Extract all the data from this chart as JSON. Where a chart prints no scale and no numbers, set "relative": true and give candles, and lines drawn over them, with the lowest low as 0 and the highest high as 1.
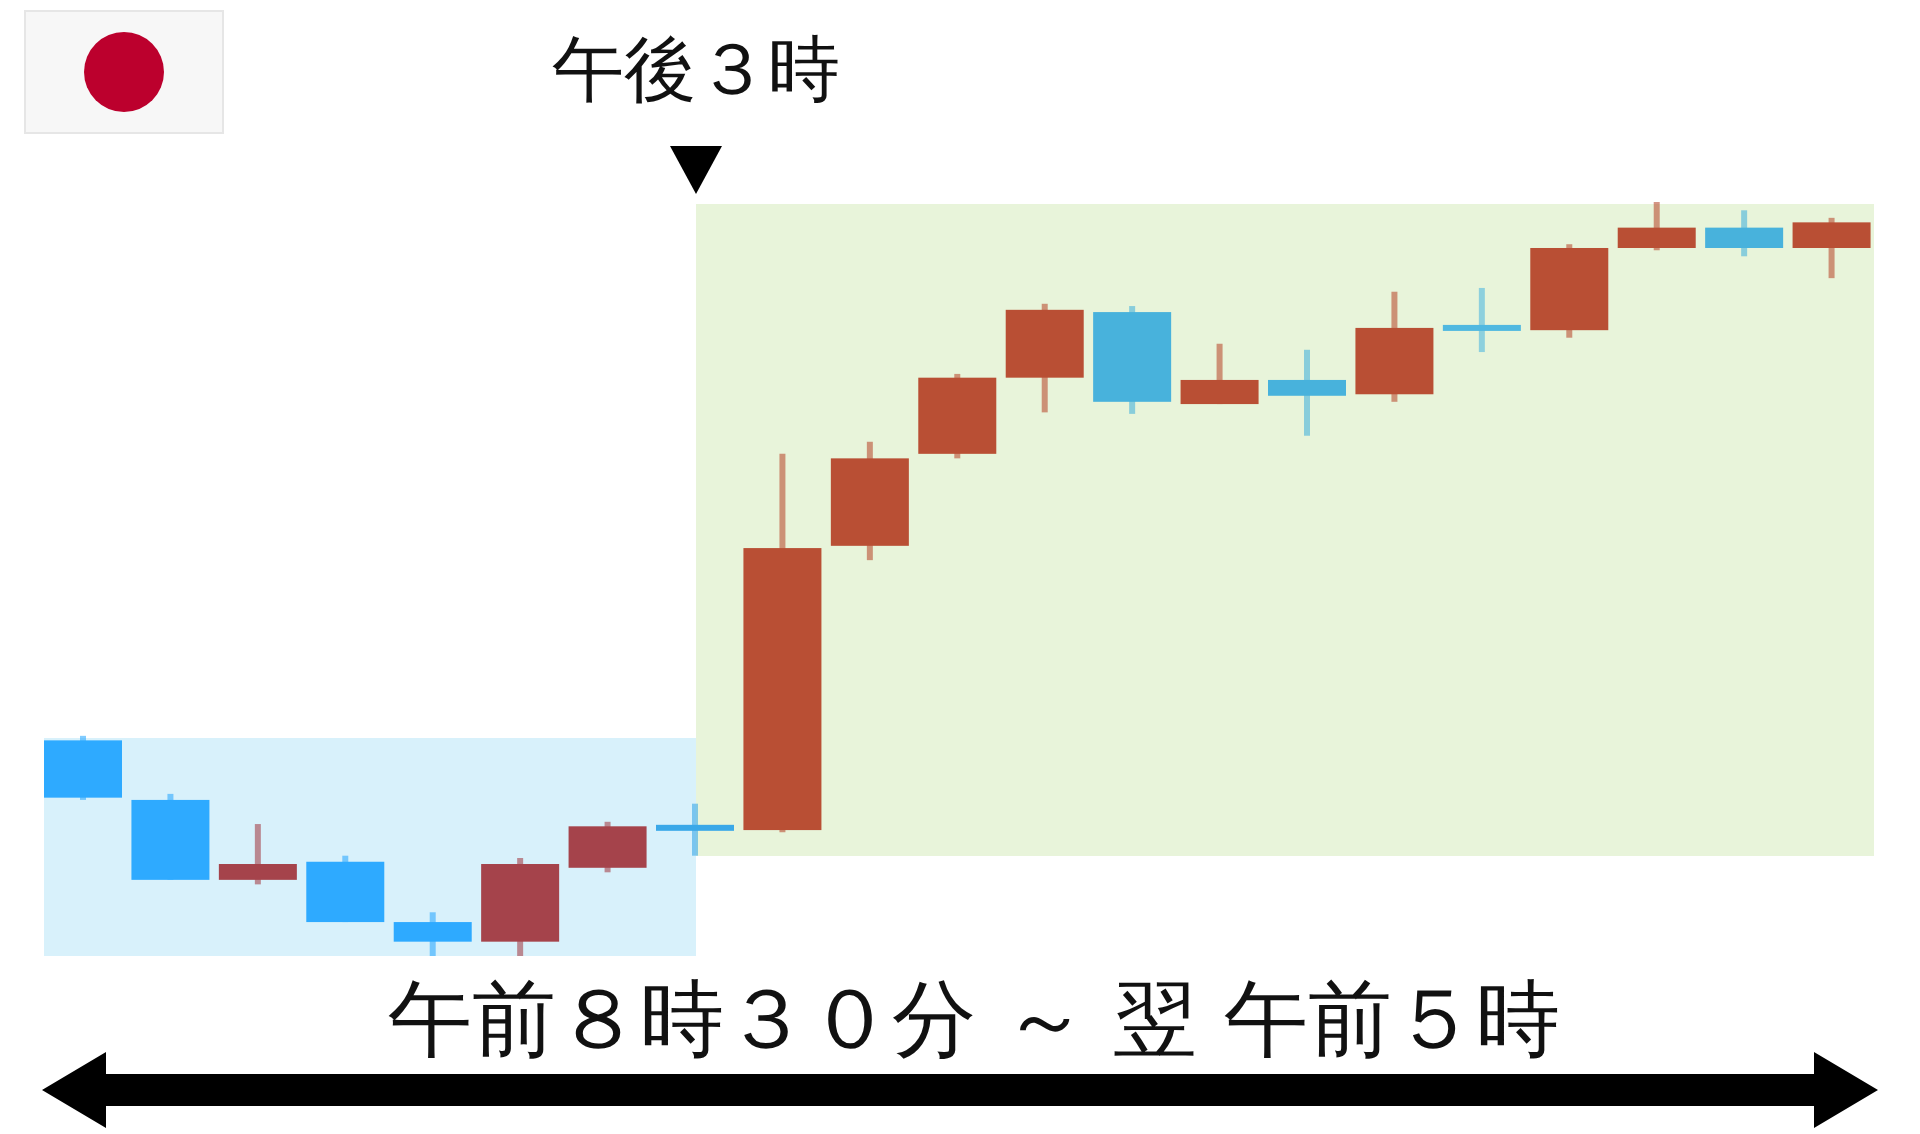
{
  "chart_data": {
    "type": "candlestick",
    "relative": true,
    "tick_labels": false,
    "categories": [
      null,
      null,
      null,
      null,
      null,
      null,
      null,
      null,
      null,
      null,
      null,
      null,
      null,
      null,
      null,
      null,
      null,
      null,
      null,
      null,
      null
    ],
    "ohlc": [
      [
        0.286,
        0.292,
        0.207,
        0.21
      ],
      [
        0.207,
        0.215,
        0.101,
        0.101
      ],
      [
        0.101,
        0.175,
        0.095,
        0.122
      ],
      [
        0.125,
        0.133,
        0.045,
        0.045
      ],
      [
        0.045,
        0.058,
        0.0,
        0.019
      ],
      [
        0.019,
        0.13,
        0.0,
        0.122
      ],
      [
        0.117,
        0.178,
        0.111,
        0.172
      ],
      [
        0.17,
        0.202,
        0.133,
        0.17
      ],
      [
        0.167,
        0.666,
        0.164,
        0.541
      ],
      [
        0.544,
        0.682,
        0.525,
        0.66
      ],
      [
        0.666,
        0.772,
        0.66,
        0.767
      ],
      [
        0.767,
        0.865,
        0.721,
        0.857
      ],
      [
        0.854,
        0.862,
        0.719,
        0.735
      ],
      [
        0.732,
        0.812,
        0.732,
        0.764
      ],
      [
        0.764,
        0.804,
        0.69,
        0.743
      ],
      [
        0.745,
        0.881,
        0.735,
        0.833
      ],
      [
        0.833,
        0.886,
        0.801,
        0.833
      ],
      [
        0.83,
        0.944,
        0.82,
        0.939
      ],
      [
        0.939,
        1.0,
        0.936,
        0.966
      ],
      [
        0.966,
        0.989,
        0.928,
        0.939
      ],
      [
        0.939,
        0.979,
        0.899,
        0.973
      ]
    ],
    "colors": [
      "#2eaaff",
      "#2eaaff",
      "#a5434b",
      "#2eaaff",
      "#2eaaff",
      "#a5434b",
      "#a5434b",
      "#3aa8e8",
      "#b94f34",
      "#b94f34",
      "#b94f34",
      "#b94f34",
      "#48b2dc",
      "#b94f34",
      "#48b2dc",
      "#b94f34",
      "#50b8e0",
      "#b94f34",
      "#b94f34",
      "#48b2dc",
      "#b94f34"
    ],
    "annotations": [
      "午後３時",
      "午前８時３０分 ～ 翌 午前５時"
    ]
  }
}
